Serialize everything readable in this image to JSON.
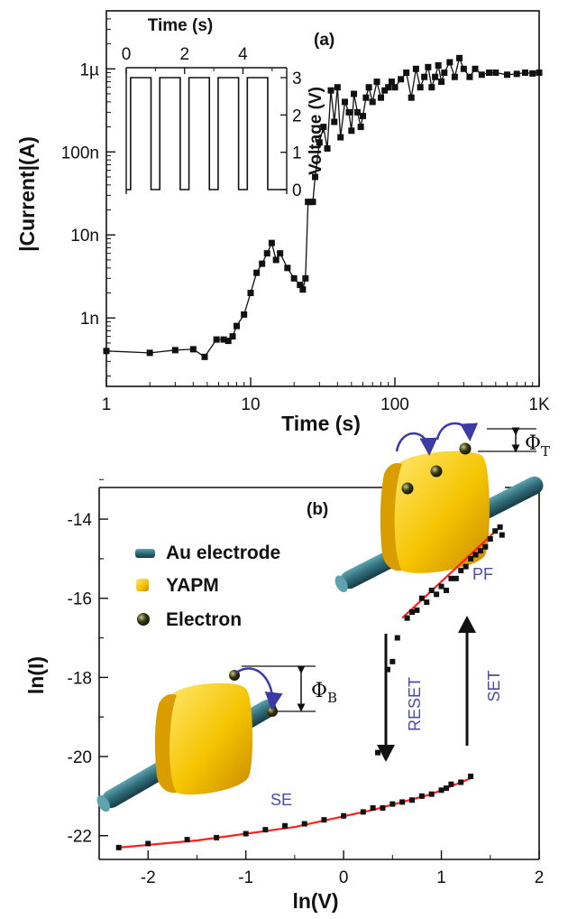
{
  "chart_data": [
    {
      "panel": "(a)",
      "type": "scatter",
      "xscale": "log",
      "yscale": "log",
      "xlabel": "Time (s)",
      "ylabel": "|Current|(A)",
      "xlim": [
        1,
        1000
      ],
      "ylim": [
        1.5e-10,
        5e-06
      ],
      "xticks": [
        {
          "v": 1,
          "label": "1"
        },
        {
          "v": 10,
          "label": "10"
        },
        {
          "v": 100,
          "label": "100"
        },
        {
          "v": 1000,
          "label": "1K"
        }
      ],
      "yticks": [
        {
          "v": 1e-09,
          "label": "1n"
        },
        {
          "v": 1e-08,
          "label": "10n"
        },
        {
          "v": 1e-07,
          "label": "100n"
        },
        {
          "v": 1e-06,
          "label": "1µ"
        }
      ],
      "x": [
        1,
        2,
        3,
        4,
        4.8,
        5.8,
        6.5,
        7,
        7.5,
        8,
        9,
        10,
        11,
        12,
        13,
        14,
        15,
        16,
        18,
        20,
        22,
        23,
        24,
        25,
        26,
        27,
        28,
        30,
        32,
        34,
        36,
        38,
        40,
        42,
        45,
        48,
        50,
        52,
        55,
        58,
        60,
        63,
        66,
        70,
        75,
        80,
        85,
        90,
        95,
        100,
        110,
        120,
        130,
        140,
        150,
        160,
        170,
        180,
        190,
        200,
        210,
        220,
        240,
        260,
        280,
        300,
        330,
        360,
        400,
        450,
        500,
        600,
        700,
        800,
        900,
        1000
      ],
      "y": [
        4e-10,
        3.8e-10,
        4.1e-10,
        4.2e-10,
        3.4e-10,
        5.5e-10,
        5.5e-10,
        5.3e-10,
        6e-10,
        8e-10,
        1.1e-09,
        2e-09,
        3.5e-09,
        4.5e-09,
        6e-09,
        8e-09,
        5e-09,
        6e-09,
        4e-09,
        3e-09,
        2.5e-09,
        2.2e-09,
        3e-09,
        2.5e-08,
        2.5e-08,
        2.5e-08,
        5e-08,
        1.3e-07,
        2e-07,
        1.1e-07,
        5.5e-07,
        2.3e-07,
        6e-07,
        1.5e-07,
        4e-07,
        3e-07,
        1.8e-07,
        5e-07,
        3e-07,
        2e-07,
        2.7e-07,
        4.5e-07,
        6e-07,
        4e-07,
        7e-07,
        4.5e-07,
        5.5e-07,
        6e-07,
        7e-07,
        6e-07,
        7.5e-07,
        9e-07,
        4.5e-07,
        1e-06,
        6e-07,
        8e-07,
        1.05e-06,
        6e-07,
        8e-07,
        1.1e-06,
        7e-07,
        9e-07,
        1.2e-06,
        8e-07,
        1.35e-06,
        1e-06,
        8e-07,
        1e-06,
        8.5e-07,
        9e-07,
        9e-07,
        8.5e-07,
        8.7e-07,
        9e-07,
        8.8e-07,
        9e-07
      ],
      "inset": {
        "type": "line",
        "xlabel": "Time (s)",
        "ylabel": "Voltage (V)",
        "xlim": [
          0,
          5.5
        ],
        "ylim": [
          0,
          3
        ],
        "xticks": [
          0,
          2,
          4
        ],
        "yticks": [
          0,
          1,
          2,
          3
        ],
        "signal": "square wave 0 V to 3 V, period 1 s, 5 cycles"
      }
    },
    {
      "panel": "(b)",
      "type": "scatter",
      "xlabel": "ln(V)",
      "ylabel": "ln(I)",
      "xlim": [
        -2.5,
        2
      ],
      "ylim": [
        -22.6,
        -13.2
      ],
      "xticks": [
        -2,
        -1,
        0,
        1,
        2
      ],
      "yticks": [
        -14,
        -16,
        -18,
        -20,
        -22
      ],
      "series": [
        {
          "name": "SE",
          "x": [
            -2.3,
            -2.0,
            -1.6,
            -1.3,
            -1.0,
            -0.8,
            -0.6,
            -0.4,
            -0.2,
            0.0,
            0.2,
            0.3,
            0.4,
            0.5,
            0.6,
            0.7,
            0.8,
            0.9,
            1.0,
            1.05,
            1.1,
            1.2,
            1.3
          ],
          "y": [
            -22.3,
            -22.2,
            -22.1,
            -22.05,
            -21.95,
            -21.85,
            -21.75,
            -21.7,
            -21.6,
            -21.5,
            -21.4,
            -21.3,
            -21.3,
            -21.2,
            -21.15,
            -21.1,
            -21.0,
            -20.95,
            -20.85,
            -20.8,
            -20.7,
            -20.65,
            -20.5
          ],
          "fit_x": [
            -2.3,
            -1.5,
            -0.5,
            0.3,
            0.9,
            1.3
          ],
          "fit_y": [
            -22.3,
            -22.12,
            -21.78,
            -21.35,
            -20.95,
            -20.55
          ]
        },
        {
          "name": "RESET",
          "x": [
            0.45,
            0.5,
            0.55,
            0.35
          ],
          "y": [
            -17.8,
            -17.6,
            -17.0,
            -19.9
          ]
        },
        {
          "name": "PF",
          "x": [
            0.65,
            0.7,
            0.75,
            0.8,
            0.85,
            0.9,
            0.95,
            1.0,
            1.05,
            1.1,
            1.15,
            1.2,
            1.25,
            1.3,
            1.35,
            1.4,
            1.45,
            1.5,
            1.55,
            1.6,
            1.62
          ],
          "y": [
            -16.5,
            -16.35,
            -16.3,
            -16.0,
            -16.1,
            -15.8,
            -15.9,
            -15.7,
            -15.8,
            -15.5,
            -15.5,
            -15.3,
            -15.2,
            -15.0,
            -14.9,
            -14.8,
            -14.7,
            -14.5,
            -14.3,
            -14.2,
            -14.4
          ],
          "fit_x": [
            0.6,
            1.6
          ],
          "fit_y": [
            -16.5,
            -14.2
          ]
        }
      ],
      "annotations": {
        "reset": "RESET",
        "set": "SET",
        "se": "SE",
        "pf": "PF",
        "phi_b": "Φ",
        "phi_b_sub": "B",
        "phi_t": "Φ",
        "phi_t_sub": "T"
      },
      "legend": [
        {
          "label": "Au electrode",
          "symbol": "cylinder",
          "color": "#2f6b78"
        },
        {
          "label": "YAPM",
          "symbol": "square",
          "color": "#f0c000"
        },
        {
          "label": "Electron",
          "symbol": "sphere",
          "color": "#3a3a10"
        }
      ]
    }
  ],
  "colors": {
    "fit": "#ff2020",
    "marker": "#111111",
    "arrow_blue": "#3b3ba8",
    "text_blue": "#4a4aa8",
    "electrode": "#2f6b78",
    "block": "#f0c000"
  }
}
